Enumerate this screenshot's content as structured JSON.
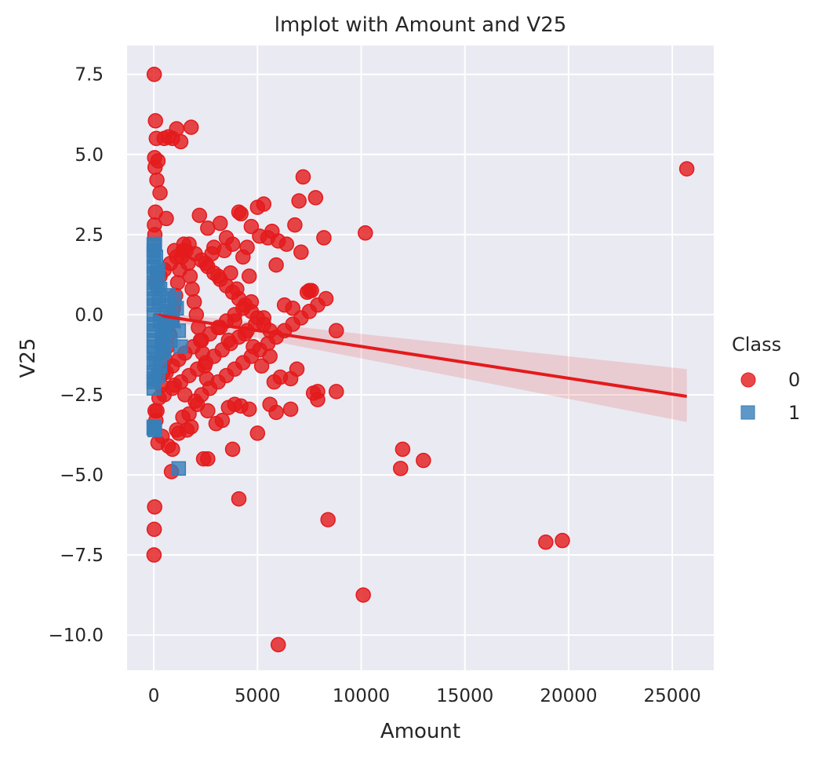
{
  "chart_data": {
    "type": "scatter",
    "title": "lmplot with Amount and V25",
    "xlabel": "Amount",
    "ylabel": "V25",
    "xlim": [
      -1290,
      27000
    ],
    "ylim": [
      -11.1,
      8.4
    ],
    "xticks": [
      0,
      5000,
      10000,
      15000,
      20000,
      25000
    ],
    "xtick_labels": [
      "0",
      "5000",
      "10000",
      "15000",
      "20000",
      "25000"
    ],
    "yticks": [
      -10.0,
      -7.5,
      -5.0,
      -2.5,
      0.0,
      2.5,
      5.0,
      7.5
    ],
    "ytick_labels": [
      "−10.0",
      "−7.5",
      "−5.0",
      "−2.5",
      "0.0",
      "2.5",
      "5.0",
      "7.5"
    ],
    "grid": true,
    "legend": {
      "title": "Class",
      "placement": "right"
    },
    "series": [
      {
        "name": "0",
        "color": "#e41a1c",
        "marker": "circle",
        "x": [
          20,
          80,
          120,
          40,
          60,
          150,
          300,
          600,
          1000,
          1100,
          900,
          1300,
          1800,
          700,
          500,
          200,
          2200,
          2600,
          2900,
          3200,
          3500,
          3800,
          4100,
          4200,
          4500,
          4700,
          5000,
          5300,
          5700,
          6000,
          6400,
          6800,
          7000,
          7200,
          7400,
          7600,
          7800,
          8200,
          8800,
          10200,
          25700,
          2500,
          2800,
          3100,
          3400,
          3700,
          4000,
          4300,
          4600,
          5100,
          5500,
          5900,
          6300,
          6700,
          7100,
          7500,
          7900,
          8800,
          3200,
          3600,
          3900,
          4400,
          4800,
          5200,
          5600,
          5800,
          6100,
          6600,
          6900,
          7700,
          7900,
          1000,
          1500,
          2100,
          2600,
          3000,
          3300,
          3600,
          3900,
          4200,
          4600,
          5000,
          5600,
          5900,
          1200,
          1600,
          2400,
          1800,
          3800,
          4100,
          2600,
          6600,
          850,
          8400,
          12000,
          11900,
          13000,
          18900,
          19700,
          10100,
          6000,
          40,
          20,
          10,
          200,
          400,
          700,
          900,
          1100,
          1400,
          1700,
          2000,
          2300,
          2700,
          3100,
          3500,
          3900,
          4300,
          4700,
          5100,
          5500,
          5900,
          6300,
          6700,
          7100,
          7500,
          7900,
          8300,
          600,
          900,
          1200,
          1500,
          1900,
          2300,
          2700,
          3100,
          3500,
          3900,
          4300,
          4700,
          100,
          300,
          500,
          800,
          1100,
          1400,
          1700,
          2000,
          2300,
          2600,
          2900,
          3200,
          3500,
          3800,
          4100,
          4400,
          4700,
          5000,
          5300,
          5600,
          500,
          900,
          1300,
          1700,
          2100,
          2500,
          2900,
          3300,
          3700,
          4100,
          4500,
          4900,
          5300,
          80,
          30,
          50,
          60,
          100,
          150,
          250,
          350,
          450,
          550,
          650,
          750,
          850,
          950,
          1050,
          1150,
          1250,
          1350,
          1450,
          1550,
          1650,
          1750,
          1850,
          1950,
          2050,
          2150,
          2250,
          2350,
          2450,
          2550
        ],
        "y": [
          7.5,
          6.05,
          5.5,
          4.9,
          4.6,
          4.2,
          3.8,
          3.0,
          2.0,
          5.8,
          5.5,
          5.4,
          5.85,
          5.55,
          5.5,
          4.8,
          3.1,
          2.7,
          2.1,
          2.85,
          2.4,
          2.2,
          3.2,
          3.15,
          2.1,
          2.75,
          3.35,
          3.45,
          2.6,
          2.3,
          2.2,
          2.8,
          3.55,
          4.3,
          0.7,
          0.75,
          3.65,
          2.4,
          -0.5,
          2.55,
          4.55,
          1.6,
          1.9,
          1.2,
          2.0,
          1.3,
          0.8,
          1.8,
          1.2,
          2.45,
          2.4,
          1.55,
          0.3,
          0.2,
          1.95,
          0.75,
          -2.4,
          -2.4,
          -0.4,
          -0.8,
          -0.2,
          -0.6,
          -1.0,
          -1.6,
          -1.3,
          -2.1,
          -1.95,
          -2.0,
          -1.7,
          -2.45,
          -2.65,
          -2.2,
          -2.5,
          -2.8,
          -3.0,
          -3.4,
          -3.3,
          -2.9,
          -2.8,
          -2.85,
          -2.95,
          -3.7,
          -2.8,
          -3.05,
          -3.7,
          -3.6,
          -4.5,
          -3.5,
          -4.2,
          -5.75,
          -4.5,
          -2.95,
          -4.9,
          -6.4,
          -4.2,
          -4.8,
          -4.55,
          -7.1,
          -7.05,
          -8.75,
          -10.3,
          -6.0,
          -6.7,
          -7.5,
          -4.0,
          -3.8,
          -4.1,
          -4.2,
          -3.6,
          -3.2,
          -3.1,
          -2.7,
          -2.5,
          -2.3,
          -2.1,
          -1.9,
          -1.7,
          -1.5,
          -1.3,
          -1.1,
          -0.9,
          -0.7,
          -0.5,
          -0.3,
          -0.1,
          0.1,
          0.3,
          0.5,
          -1.8,
          -1.6,
          -1.4,
          -1.2,
          -1.0,
          -0.8,
          -0.6,
          -0.4,
          -0.2,
          0.0,
          0.2,
          0.4,
          1.0,
          1.2,
          1.4,
          1.6,
          1.8,
          2.0,
          2.2,
          1.9,
          1.7,
          1.5,
          1.3,
          1.1,
          0.9,
          0.7,
          0.5,
          0.3,
          0.1,
          -0.1,
          -0.3,
          -0.5,
          -2.5,
          -2.3,
          -2.1,
          -1.9,
          -1.7,
          -1.5,
          -1.3,
          -1.1,
          -0.9,
          -0.7,
          -0.5,
          -0.3,
          -0.1,
          3.2,
          2.8,
          2.5,
          -3.0,
          -3.3,
          -3.0,
          -2.6,
          -2.2,
          -1.8,
          -1.4,
          -1.0,
          -0.6,
          -0.2,
          0.2,
          0.6,
          1.0,
          1.4,
          1.8,
          2.2,
          2.0,
          1.6,
          1.2,
          0.8,
          0.4,
          0.0,
          -0.4,
          -0.8,
          -1.2,
          -1.6,
          -2.0
        ],
        "regression": {
          "x": [
            0,
            25700
          ],
          "y": [
            0.0,
            -2.55
          ],
          "ci_upper_end": -1.7,
          "ci_lower_end": -3.35
        }
      },
      {
        "name": "1",
        "color": "#377eb8",
        "marker": "square",
        "x": [
          0,
          0,
          0,
          0,
          0,
          0,
          0,
          0,
          0,
          0,
          0,
          0,
          0,
          0,
          0,
          0,
          0,
          0,
          0,
          0,
          0,
          50,
          100,
          150,
          200,
          250,
          300,
          400,
          500,
          600,
          700,
          800,
          900,
          1000,
          1100,
          1200,
          1300,
          100,
          200,
          300,
          400,
          500,
          600,
          700,
          800,
          200,
          300,
          400,
          500,
          1200,
          0,
          50
        ],
        "y": [
          2.0,
          1.5,
          1.0,
          0.5,
          0.0,
          -0.5,
          -1.0,
          -1.5,
          -2.0,
          -2.3,
          -2.1,
          -1.8,
          -1.2,
          -0.8,
          -0.3,
          0.3,
          0.8,
          1.3,
          1.8,
          2.2,
          -3.5,
          2.2,
          1.8,
          1.3,
          0.9,
          0.4,
          -0.2,
          -0.7,
          -1.1,
          -0.4,
          0.3,
          -0.8,
          -0.2,
          0.5,
          0.2,
          -0.5,
          -1.0,
          -1.4,
          -1.9,
          -1.6,
          -1.2,
          -0.6,
          0.1,
          0.6,
          -0.1,
          1.4,
          0.8,
          -0.9,
          -0.3,
          -4.8,
          -3.55,
          -3.6
        ],
        "regression": {
          "x": [
            0,
            1300
          ],
          "y": [
            0.0,
            -0.4
          ],
          "ci_upper_end": 0.6,
          "ci_lower_end": -1.6
        }
      }
    ]
  }
}
